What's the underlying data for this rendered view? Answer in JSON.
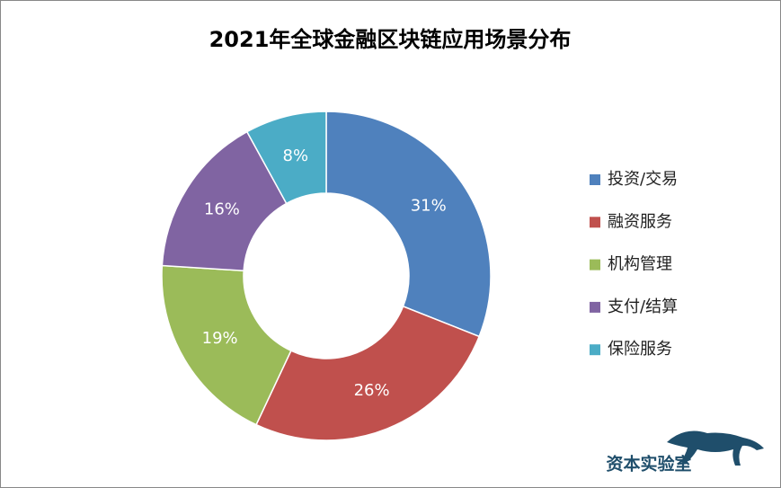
{
  "chart_data": {
    "type": "donut",
    "title": "2021年全球金融区块链应用场景分布",
    "categories": [
      "投资/交易",
      "融资服务",
      "机构管理",
      "支付/结算",
      "保险服务"
    ],
    "values": [
      31,
      26,
      19,
      16,
      8
    ],
    "value_labels": [
      "31%",
      "26%",
      "19%",
      "16%",
      "8%"
    ],
    "colors": [
      "#4f81bd",
      "#c0504d",
      "#9bbb59",
      "#8064a2",
      "#4bacc6"
    ],
    "legend": "right",
    "watermark": "资本实验室"
  }
}
